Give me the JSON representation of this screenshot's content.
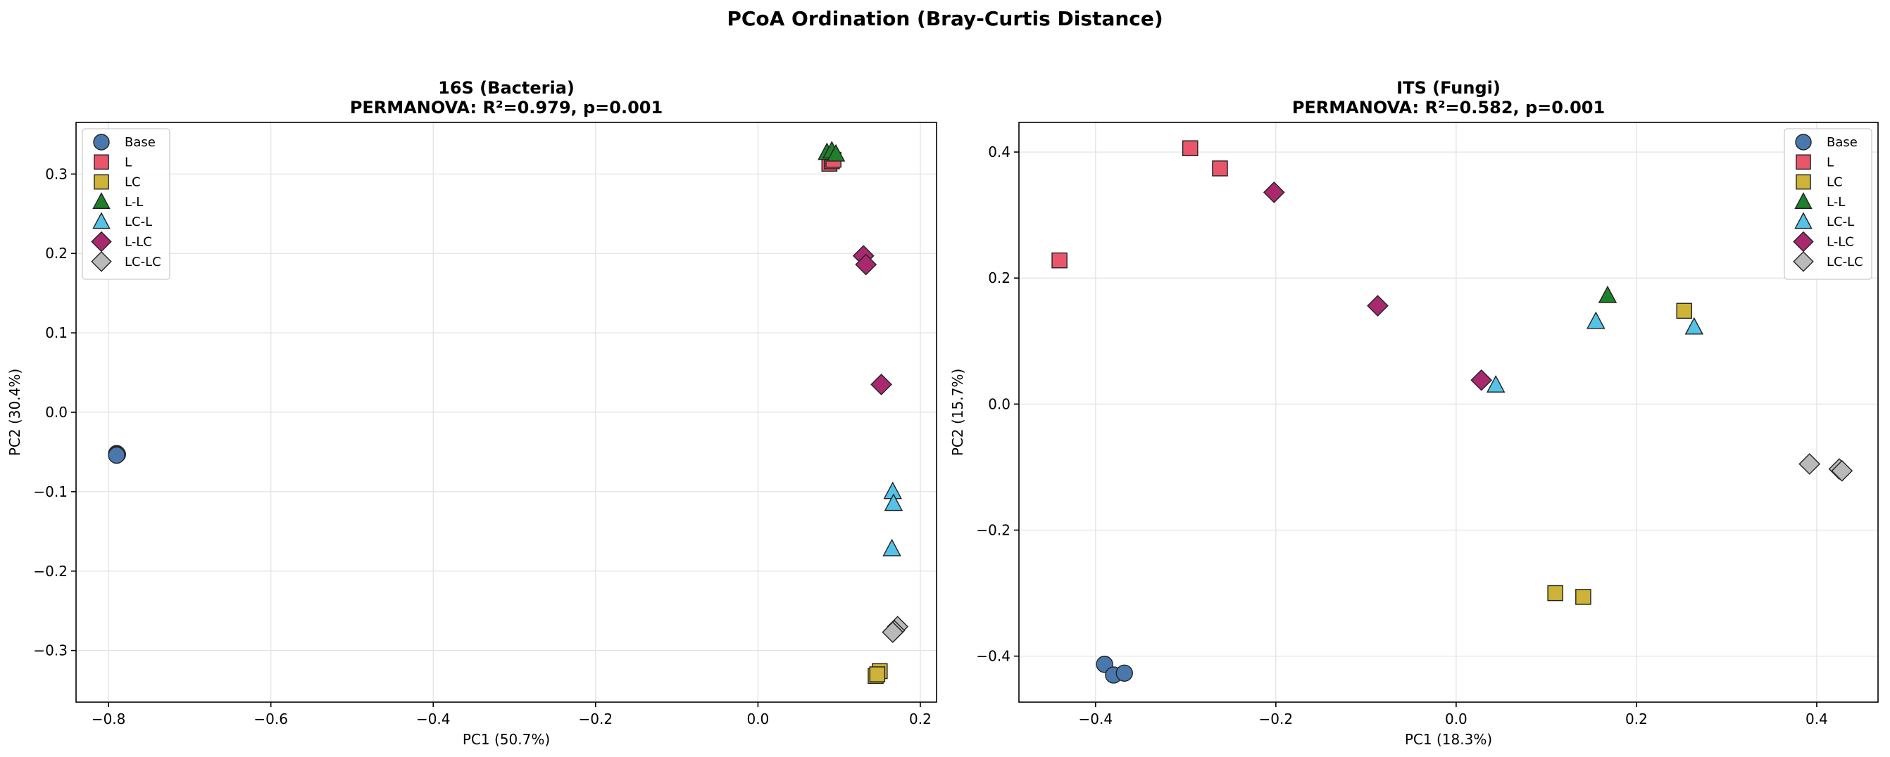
{
  "figure": {
    "title": "PCoA Ordination (Bray-Curtis Distance)"
  },
  "groups": [
    {
      "name": "Base",
      "marker": "circle",
      "color": "#4a78ad"
    },
    {
      "name": "L",
      "marker": "square",
      "color": "#e9566b"
    },
    {
      "name": "LC",
      "marker": "square",
      "color": "#cdb338"
    },
    {
      "name": "L-L",
      "marker": "triangle",
      "color": "#1f7f2a"
    },
    {
      "name": "LC-L",
      "marker": "triangle",
      "color": "#55c2e6"
    },
    {
      "name": "L-LC",
      "marker": "diamond",
      "color": "#a8296e"
    },
    {
      "name": "LC-LC",
      "marker": "diamond",
      "color": "#b9b9b9"
    }
  ],
  "chart_data": [
    {
      "type": "scatter",
      "title": "16S (Bacteria)",
      "subtitle": "PERMANOVA: R²=0.979, p=0.001",
      "xlabel": "PC1 (50.7%)",
      "ylabel": "PC2 (30.4%)",
      "xlim": [
        -0.84,
        0.22
      ],
      "ylim": [
        -0.365,
        0.365
      ],
      "xticks": [
        -0.8,
        -0.6,
        -0.4,
        -0.2,
        0.0,
        0.2
      ],
      "xtick_labels": [
        "−0.8",
        "−0.6",
        "−0.4",
        "−0.2",
        "0.0",
        "0.2"
      ],
      "yticks": [
        -0.3,
        -0.2,
        -0.1,
        0.0,
        0.1,
        0.2,
        0.3
      ],
      "ytick_labels": [
        "−0.3",
        "−0.2",
        "−0.1",
        "0.0",
        "0.1",
        "0.2",
        "0.3"
      ],
      "grid": true,
      "legend_position": "upper left",
      "series": [
        {
          "name": "Base",
          "points": [
            [
              -0.79,
              -0.052
            ],
            [
              -0.789,
              -0.053
            ],
            [
              -0.79,
              -0.054
            ]
          ]
        },
        {
          "name": "L",
          "points": [
            [
              0.088,
              0.313
            ],
            [
              0.091,
              0.316
            ],
            [
              0.093,
              0.318
            ]
          ]
        },
        {
          "name": "LC",
          "points": [
            [
              0.145,
              -0.332
            ],
            [
              0.15,
              -0.326
            ],
            [
              0.147,
              -0.33
            ]
          ]
        },
        {
          "name": "L-L",
          "points": [
            [
              0.085,
              0.327
            ],
            [
              0.091,
              0.329
            ],
            [
              0.096,
              0.325
            ]
          ]
        },
        {
          "name": "LC-L",
          "points": [
            [
              0.166,
              -0.1
            ],
            [
              0.167,
              -0.115
            ],
            [
              0.165,
              -0.172
            ]
          ]
        },
        {
          "name": "L-LC",
          "points": [
            [
              0.13,
              0.197
            ],
            [
              0.133,
              0.186
            ],
            [
              0.152,
              0.035
            ]
          ]
        },
        {
          "name": "LC-LC",
          "points": [
            [
              0.172,
              -0.27
            ],
            [
              0.168,
              -0.275
            ],
            [
              0.166,
              -0.277
            ]
          ]
        }
      ]
    },
    {
      "type": "scatter",
      "title": "ITS (Fungi)",
      "subtitle": "PERMANOVA: R²=0.582, p=0.001",
      "xlabel": "PC1 (18.3%)",
      "ylabel": "PC2 (15.7%)",
      "xlim": [
        -0.485,
        0.468
      ],
      "ylim": [
        -0.473,
        0.447
      ],
      "xticks": [
        -0.4,
        -0.2,
        0.0,
        0.2,
        0.4
      ],
      "xtick_labels": [
        "−0.4",
        "−0.2",
        "0.0",
        "0.2",
        "0.4"
      ],
      "yticks": [
        -0.4,
        -0.2,
        0.0,
        0.2,
        0.4
      ],
      "ytick_labels": [
        "−0.4",
        "−0.2",
        "0.0",
        "0.2",
        "0.4"
      ],
      "grid": true,
      "legend_position": "upper right",
      "series": [
        {
          "name": "Base",
          "points": [
            [
              -0.39,
              -0.413
            ],
            [
              -0.38,
              -0.43
            ],
            [
              -0.368,
              -0.427
            ]
          ]
        },
        {
          "name": "L",
          "points": [
            [
              -0.44,
              0.228
            ],
            [
              -0.295,
              0.406
            ],
            [
              -0.262,
              0.374
            ]
          ]
        },
        {
          "name": "LC",
          "points": [
            [
              0.11,
              -0.3
            ],
            [
              0.141,
              -0.306
            ],
            [
              0.253,
              0.148
            ]
          ]
        },
        {
          "name": "L-L",
          "points": [
            [
              0.168,
              0.172
            ]
          ]
        },
        {
          "name": "LC-L",
          "points": [
            [
              0.155,
              0.131
            ],
            [
              0.264,
              0.122
            ],
            [
              0.044,
              0.03
            ]
          ]
        },
        {
          "name": "L-LC",
          "points": [
            [
              -0.202,
              0.336
            ],
            [
              -0.087,
              0.156
            ],
            [
              0.028,
              0.038
            ]
          ]
        },
        {
          "name": "LC-LC",
          "points": [
            [
              0.392,
              -0.095
            ],
            [
              0.425,
              -0.103
            ],
            [
              0.428,
              -0.106
            ]
          ]
        }
      ]
    }
  ]
}
